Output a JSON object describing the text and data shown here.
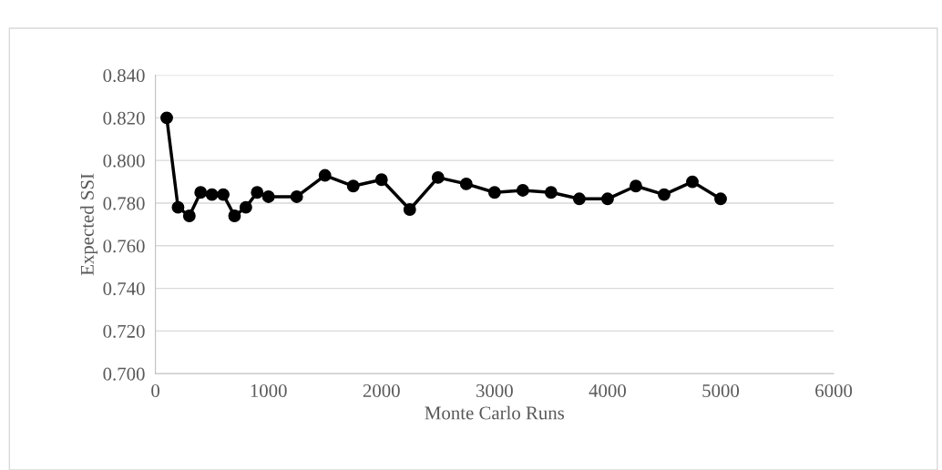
{
  "chart_data": {
    "type": "line",
    "xlabel": "Monte Carlo Runs",
    "ylabel": "Expected SSI",
    "x": [
      100,
      200,
      300,
      400,
      500,
      600,
      700,
      800,
      900,
      1000,
      1250,
      1500,
      1750,
      2000,
      2250,
      2500,
      2750,
      3000,
      3250,
      3500,
      3750,
      4000,
      4250,
      4500,
      4750,
      5000
    ],
    "series": [
      {
        "color": "#000000",
        "values": [
          0.82,
          0.778,
          0.774,
          0.785,
          0.784,
          0.784,
          0.774,
          0.778,
          0.785,
          0.783,
          0.783,
          0.793,
          0.788,
          0.791,
          0.777,
          0.792,
          0.789,
          0.785,
          0.786,
          0.785,
          0.782,
          0.782,
          0.788,
          0.784,
          0.79,
          0.782
        ]
      }
    ],
    "xlim": [
      0,
      6000
    ],
    "xticks": [
      0,
      1000,
      2000,
      3000,
      4000,
      5000,
      6000
    ],
    "ylim": [
      0.7,
      0.84
    ],
    "yticks": [
      {
        "value": 0.7,
        "label": "0.700"
      },
      {
        "value": 0.72,
        "label": "0.720"
      },
      {
        "value": 0.74,
        "label": "0.740"
      },
      {
        "value": 0.76,
        "label": "0.760"
      },
      {
        "value": 0.78,
        "label": "0.780"
      },
      {
        "value": 0.8,
        "label": "0.800"
      },
      {
        "value": 0.82,
        "label": "0.820"
      },
      {
        "value": 0.84,
        "label": "0.840"
      }
    ],
    "grid": "y",
    "marker": "circle",
    "line_style": "solid",
    "legend": false
  }
}
